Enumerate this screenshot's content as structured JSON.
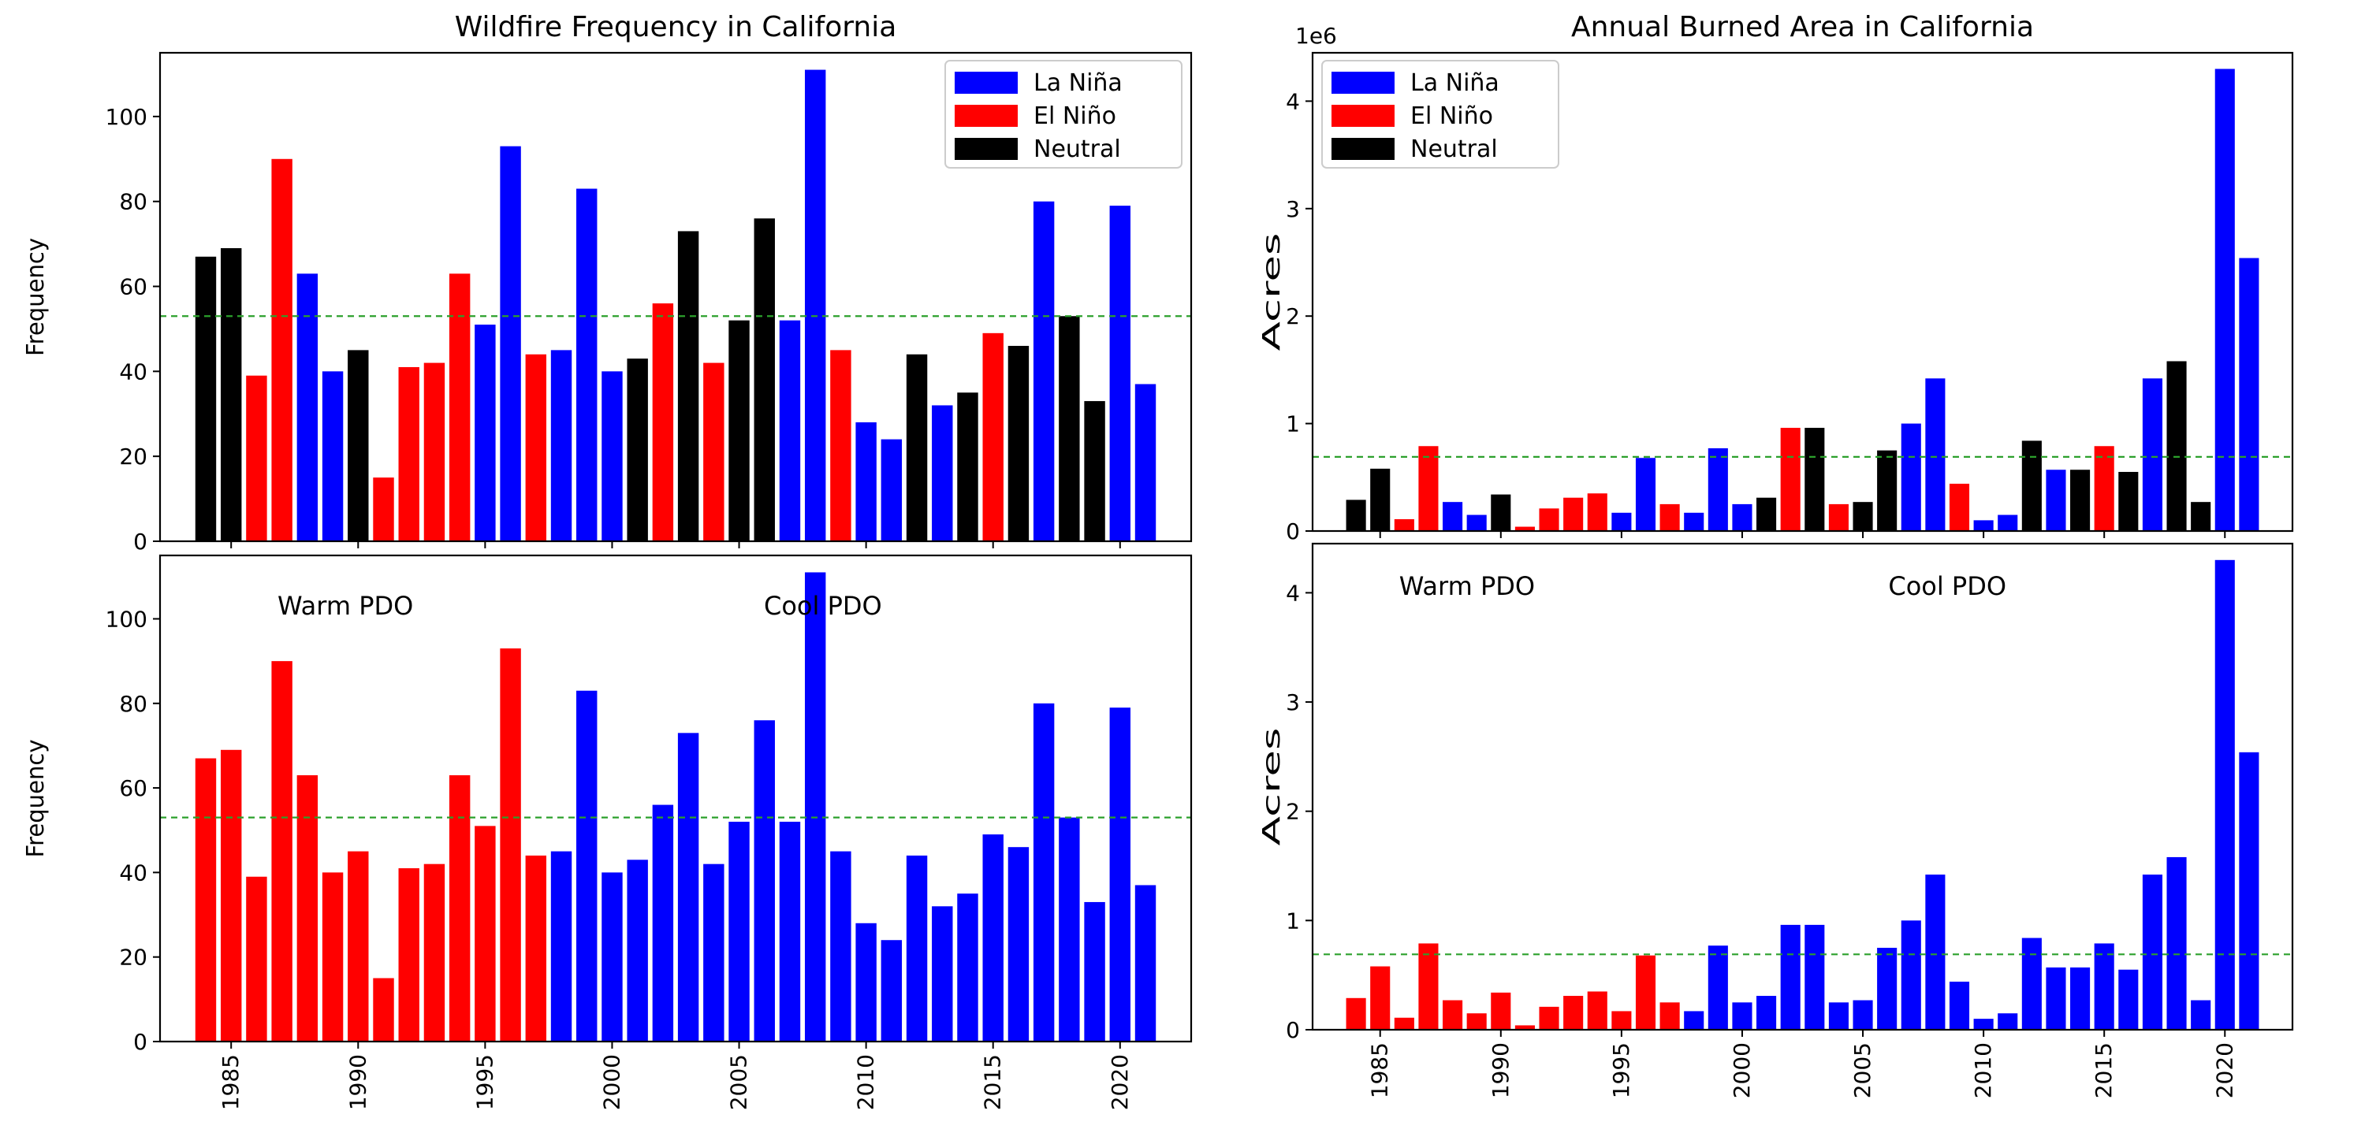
{
  "colors": {
    "la_nina": "#0000ff",
    "el_nino": "#ff0000",
    "neutral": "#000000",
    "mean_line": "#2ca02c",
    "warm_pdo": "#ff0000",
    "cool_pdo": "#0000ff"
  },
  "chart_data": [
    {
      "id": "freq-enso",
      "type": "bar",
      "title": "Wildfire Frequency in California",
      "ylabel": "Frequency",
      "xlabel": "",
      "ylim": [
        0,
        115
      ],
      "yticks": [
        0,
        20,
        40,
        60,
        80,
        100
      ],
      "ytick_labels": [
        "0",
        "20",
        "40",
        "60",
        "80",
        "100"
      ],
      "xticks": [
        1985,
        1990,
        1995,
        2000,
        2005,
        2010,
        2015,
        2020
      ],
      "xtick_labels": [],
      "x": [
        1984,
        1985,
        1986,
        1987,
        1988,
        1989,
        1990,
        1991,
        1992,
        1993,
        1994,
        1995,
        1996,
        1997,
        1998,
        1999,
        2000,
        2001,
        2002,
        2003,
        2004,
        2005,
        2006,
        2007,
        2008,
        2009,
        2010,
        2011,
        2012,
        2013,
        2014,
        2015,
        2016,
        2017,
        2018,
        2019,
        2020,
        2021
      ],
      "values": [
        67,
        69,
        39,
        90,
        63,
        40,
        45,
        15,
        41,
        42,
        63,
        51,
        93,
        44,
        45,
        83,
        40,
        43,
        56,
        73,
        42,
        52,
        76,
        52,
        111,
        45,
        28,
        24,
        44,
        32,
        35,
        49,
        46,
        80,
        53,
        33,
        79,
        37
      ],
      "phase": [
        "Neutral",
        "Neutral",
        "El Niño",
        "El Niño",
        "La Niña",
        "La Niña",
        "Neutral",
        "El Niño",
        "El Niño",
        "El Niño",
        "El Niño",
        "La Niña",
        "La Niña",
        "El Niño",
        "La Niña",
        "La Niña",
        "La Niña",
        "Neutral",
        "El Niño",
        "Neutral",
        "El Niño",
        "Neutral",
        "Neutral",
        "La Niña",
        "La Niña",
        "El Niño",
        "La Niña",
        "La Niña",
        "Neutral",
        "La Niña",
        "Neutral",
        "El Niño",
        "Neutral",
        "La Niña",
        "Neutral",
        "Neutral",
        "La Niña",
        "La Niña"
      ],
      "mean_line": 53,
      "legend": {
        "position": "top-right",
        "entries": [
          {
            "label": "La Niña",
            "color": "#0000ff"
          },
          {
            "label": "El Niño",
            "color": "#ff0000"
          },
          {
            "label": "Neutral",
            "color": "#000000"
          }
        ]
      }
    },
    {
      "id": "area-enso",
      "type": "bar",
      "title": "Annual Burned Area in California",
      "ylabel": "Acres",
      "xlabel": "",
      "offset_text": "1e6",
      "ylim": [
        0,
        4.45
      ],
      "yticks": [
        0,
        1,
        2,
        3,
        4
      ],
      "ytick_labels": [
        "0",
        "1",
        "2",
        "3",
        "4"
      ],
      "xticks": [
        1985,
        1990,
        1995,
        2000,
        2005,
        2010,
        2015,
        2020
      ],
      "xtick_labels": [],
      "x": [
        1984,
        1985,
        1986,
        1987,
        1988,
        1989,
        1990,
        1991,
        1992,
        1993,
        1994,
        1995,
        1996,
        1997,
        1998,
        1999,
        2000,
        2001,
        2002,
        2003,
        2004,
        2005,
        2006,
        2007,
        2008,
        2009,
        2010,
        2011,
        2012,
        2013,
        2014,
        2015,
        2016,
        2017,
        2018,
        2019,
        2020,
        2021
      ],
      "values": [
        0.29,
        0.58,
        0.11,
        0.79,
        0.27,
        0.15,
        0.34,
        0.04,
        0.21,
        0.31,
        0.35,
        0.17,
        0.68,
        0.25,
        0.17,
        0.77,
        0.25,
        0.31,
        0.96,
        0.96,
        0.25,
        0.27,
        0.75,
        1.0,
        1.42,
        0.44,
        0.1,
        0.15,
        0.84,
        0.57,
        0.57,
        0.79,
        0.55,
        1.42,
        1.58,
        0.27,
        4.3,
        2.54
      ],
      "phase": [
        "Neutral",
        "Neutral",
        "El Niño",
        "El Niño",
        "La Niña",
        "La Niña",
        "Neutral",
        "El Niño",
        "El Niño",
        "El Niño",
        "El Niño",
        "La Niña",
        "La Niña",
        "El Niño",
        "La Niña",
        "La Niña",
        "La Niña",
        "Neutral",
        "El Niño",
        "Neutral",
        "El Niño",
        "Neutral",
        "Neutral",
        "La Niña",
        "La Niña",
        "El Niño",
        "La Niña",
        "La Niña",
        "Neutral",
        "La Niña",
        "Neutral",
        "El Niño",
        "Neutral",
        "La Niña",
        "Neutral",
        "Neutral",
        "La Niña",
        "La Niña"
      ],
      "mean_line": 0.69,
      "legend": {
        "position": "top-left",
        "entries": [
          {
            "label": "La Niña",
            "color": "#0000ff"
          },
          {
            "label": "El Niño",
            "color": "#ff0000"
          },
          {
            "label": "Neutral",
            "color": "#000000"
          }
        ]
      }
    },
    {
      "id": "freq-pdo",
      "type": "bar",
      "title": "",
      "ylabel": "Frequency",
      "xlabel": "",
      "ylim": [
        0,
        115
      ],
      "yticks": [
        0,
        20,
        40,
        60,
        80,
        100
      ],
      "ytick_labels": [
        "0",
        "20",
        "40",
        "60",
        "80",
        "100"
      ],
      "xticks": [
        1985,
        1990,
        1995,
        2000,
        2005,
        2010,
        2015,
        2020
      ],
      "xtick_labels": [
        "1985",
        "1990",
        "1995",
        "2000",
        "2005",
        "2010",
        "2015",
        "2020"
      ],
      "x": [
        1984,
        1985,
        1986,
        1987,
        1988,
        1989,
        1990,
        1991,
        1992,
        1993,
        1994,
        1995,
        1996,
        1997,
        1998,
        1999,
        2000,
        2001,
        2002,
        2003,
        2004,
        2005,
        2006,
        2007,
        2008,
        2009,
        2010,
        2011,
        2012,
        2013,
        2014,
        2015,
        2016,
        2017,
        2018,
        2019,
        2020,
        2021
      ],
      "values": [
        67,
        69,
        39,
        90,
        63,
        40,
        45,
        15,
        41,
        42,
        63,
        51,
        93,
        44,
        45,
        83,
        40,
        43,
        56,
        73,
        42,
        52,
        76,
        52,
        111,
        45,
        28,
        24,
        44,
        32,
        35,
        49,
        46,
        80,
        53,
        33,
        79,
        37
      ],
      "phase": [
        "Warm PDO",
        "Warm PDO",
        "Warm PDO",
        "Warm PDO",
        "Warm PDO",
        "Warm PDO",
        "Warm PDO",
        "Warm PDO",
        "Warm PDO",
        "Warm PDO",
        "Warm PDO",
        "Warm PDO",
        "Warm PDO",
        "Warm PDO",
        "Cool PDO",
        "Cool PDO",
        "Cool PDO",
        "Cool PDO",
        "Cool PDO",
        "Cool PDO",
        "Cool PDO",
        "Cool PDO",
        "Cool PDO",
        "Cool PDO",
        "Cool PDO",
        "Cool PDO",
        "Cool PDO",
        "Cool PDO",
        "Cool PDO",
        "Cool PDO",
        "Cool PDO",
        "Cool PDO",
        "Cool PDO",
        "Cool PDO",
        "Cool PDO",
        "Cool PDO",
        "Cool PDO",
        "Cool PDO"
      ],
      "mean_line": 53,
      "annotations": [
        {
          "text": "Warm PDO",
          "x": 1989.5,
          "y": 101
        },
        {
          "text": "Cool PDO",
          "x": 2008.3,
          "y": 101
        }
      ]
    },
    {
      "id": "area-pdo",
      "type": "bar",
      "title": "",
      "ylabel": "Acres",
      "xlabel": "",
      "ylim": [
        0,
        4.45
      ],
      "yticks": [
        0,
        1,
        2,
        3,
        4
      ],
      "ytick_labels": [
        "0",
        "1",
        "2",
        "3",
        "4"
      ],
      "xticks": [
        1985,
        1990,
        1995,
        2000,
        2005,
        2010,
        2015,
        2020
      ],
      "xtick_labels": [
        "1985",
        "1990",
        "1995",
        "2000",
        "2005",
        "2010",
        "2015",
        "2020"
      ],
      "x": [
        1984,
        1985,
        1986,
        1987,
        1988,
        1989,
        1990,
        1991,
        1992,
        1993,
        1994,
        1995,
        1996,
        1997,
        1998,
        1999,
        2000,
        2001,
        2002,
        2003,
        2004,
        2005,
        2006,
        2007,
        2008,
        2009,
        2010,
        2011,
        2012,
        2013,
        2014,
        2015,
        2016,
        2017,
        2018,
        2019,
        2020,
        2021
      ],
      "values": [
        0.29,
        0.58,
        0.11,
        0.79,
        0.27,
        0.15,
        0.34,
        0.04,
        0.21,
        0.31,
        0.35,
        0.17,
        0.68,
        0.25,
        0.17,
        0.77,
        0.25,
        0.31,
        0.96,
        0.96,
        0.25,
        0.27,
        0.75,
        1.0,
        1.42,
        0.44,
        0.1,
        0.15,
        0.84,
        0.57,
        0.57,
        0.79,
        0.55,
        1.42,
        1.58,
        0.27,
        4.3,
        2.54
      ],
      "phase": [
        "Warm PDO",
        "Warm PDO",
        "Warm PDO",
        "Warm PDO",
        "Warm PDO",
        "Warm PDO",
        "Warm PDO",
        "Warm PDO",
        "Warm PDO",
        "Warm PDO",
        "Warm PDO",
        "Warm PDO",
        "Warm PDO",
        "Warm PDO",
        "Cool PDO",
        "Cool PDO",
        "Cool PDO",
        "Cool PDO",
        "Cool PDO",
        "Cool PDO",
        "Cool PDO",
        "Cool PDO",
        "Cool PDO",
        "Cool PDO",
        "Cool PDO",
        "Cool PDO",
        "Cool PDO",
        "Cool PDO",
        "Cool PDO",
        "Cool PDO",
        "Cool PDO",
        "Cool PDO",
        "Cool PDO",
        "Cool PDO",
        "Cool PDO",
        "Cool PDO",
        "Cool PDO",
        "Cool PDO"
      ],
      "mean_line": 0.69,
      "annotations": [
        {
          "text": "Warm PDO",
          "x": 1988.6,
          "y": 3.98
        },
        {
          "text": "Cool PDO",
          "x": 2008.5,
          "y": 3.98
        }
      ]
    }
  ]
}
